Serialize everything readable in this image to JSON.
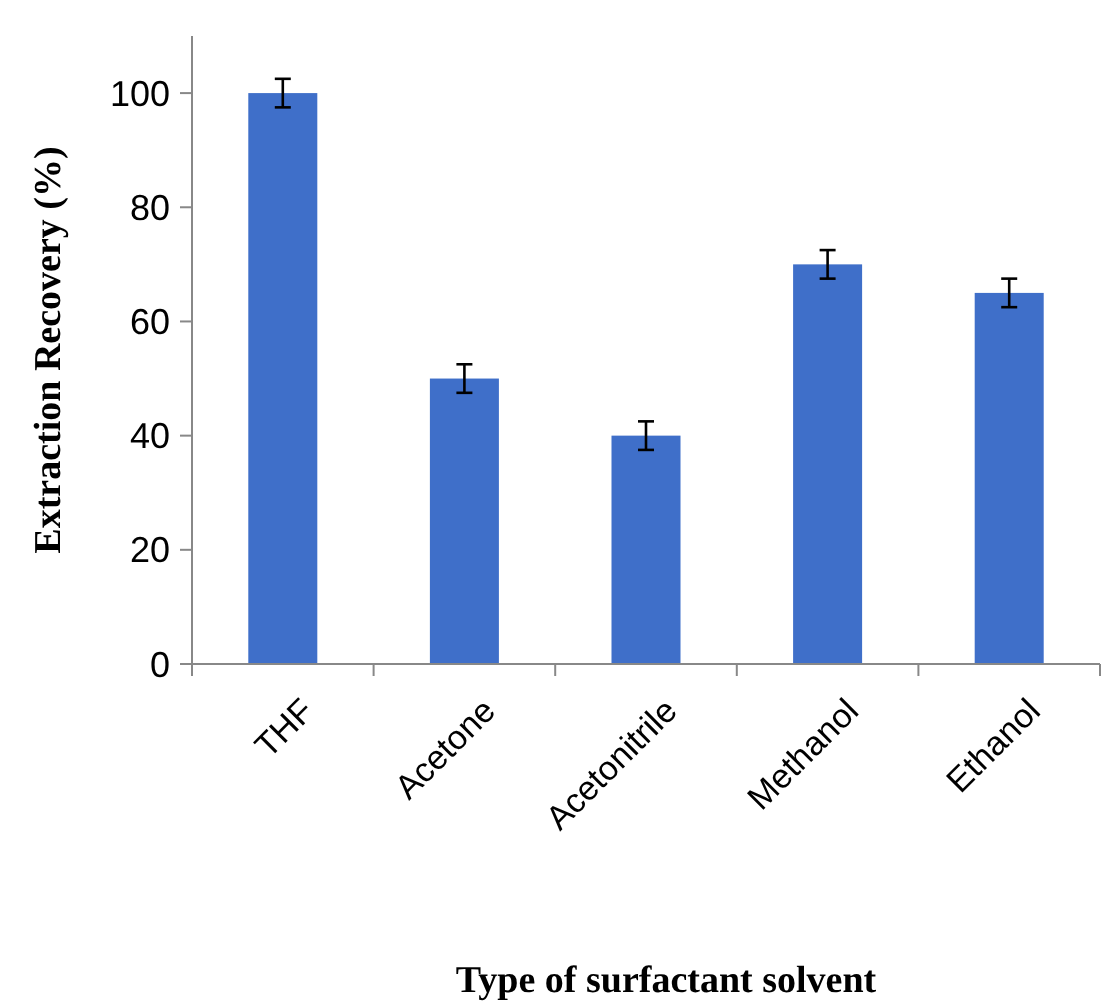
{
  "chart_data": {
    "type": "bar",
    "xlabel": "Type of surfactant solvent",
    "ylabel": "Extraction Recovery (%)",
    "categories": [
      "THF",
      "Acetone",
      "Acetonitrile",
      "Methanol",
      "Ethanol"
    ],
    "values": [
      100,
      50,
      40,
      70,
      65
    ],
    "errors": [
      2.5,
      2.5,
      2.5,
      2.5,
      2.5
    ],
    "color": "#3f6fc9",
    "ylim": [
      0,
      110
    ],
    "yticks": [
      0,
      20,
      40,
      60,
      80,
      100
    ],
    "grid": false
  }
}
